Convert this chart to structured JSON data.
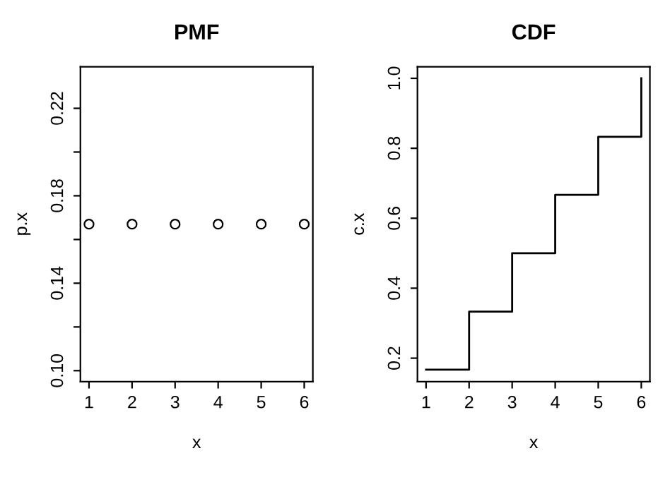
{
  "chart_data": [
    {
      "type": "scatter",
      "title": "PMF",
      "xlabel": "x",
      "ylabel": "p.x",
      "x": [
        1,
        2,
        3,
        4,
        5,
        6
      ],
      "series": [
        {
          "color": "#000000",
          "values": [
            0.167,
            0.167,
            0.167,
            0.167,
            0.167,
            0.167
          ]
        }
      ],
      "marker": "circle",
      "xlim": [
        0.8,
        6.2
      ],
      "xticks": [
        1,
        2,
        3,
        4,
        5,
        6
      ],
      "ylim": [
        0.095,
        0.239
      ],
      "yticks": [
        {
          "value": 0.1,
          "label": "0.10"
        },
        {
          "value": 0.12,
          "label": null
        },
        {
          "value": 0.14,
          "label": "0.14"
        },
        {
          "value": 0.16,
          "label": null
        },
        {
          "value": 0.18,
          "label": "0.18"
        },
        {
          "value": 0.2,
          "label": null
        },
        {
          "value": 0.22,
          "label": "0.22"
        }
      ],
      "grid": false,
      "legend": false
    },
    {
      "type": "step",
      "title": "CDF",
      "xlabel": "x",
      "ylabel": "c.x",
      "x": [
        1,
        2,
        3,
        4,
        5,
        6
      ],
      "series": [
        {
          "color": "#000000",
          "values": [
            0.167,
            0.333,
            0.5,
            0.667,
            0.833,
            1.0
          ]
        }
      ],
      "xlim": [
        0.8,
        6.2
      ],
      "xticks": [
        1,
        2,
        3,
        4,
        5,
        6
      ],
      "ylim": [
        0.133,
        1.033
      ],
      "yticks": [
        0.2,
        0.4,
        0.6,
        0.8,
        {
          "value": 1.0,
          "label": "1.0"
        }
      ],
      "grid": false,
      "legend": false
    }
  ]
}
